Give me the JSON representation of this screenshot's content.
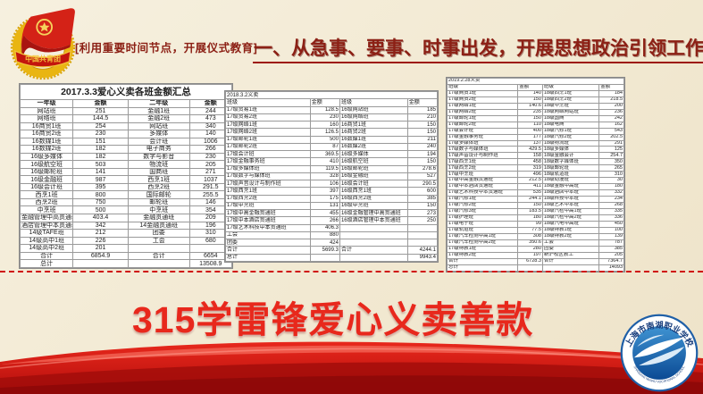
{
  "slide": {
    "badge_label": "[利用重要时间节点，开展仪式教育]",
    "title": "一、从急事、要事、时事出发，开展思想政治引领工作",
    "headline": "315学雷锋爱心义卖善款",
    "emblem": {
      "banner_text": "中国共青团"
    },
    "logo": {
      "name_cn": "上海市南湖职业学校",
      "name_en": "SHANGHAI NANHU VOCATIONAL SCHOOL"
    }
  },
  "colors": {
    "background": "#f4edda",
    "dark_red_text": "#8c2015",
    "headline_red": "#e8281c",
    "ribbon_red": "#c51512",
    "dashed_line_red": "#cf1010",
    "emblem_gold": "#e9b512",
    "logo_blue": "#1e5fa7"
  },
  "tables": [
    {
      "title": "2017.3.3爱心义卖各班金额汇总",
      "headers": [
        "一年级",
        "金额",
        "二年级",
        "金额"
      ],
      "rows": [
        [
          "网站班",
          "251",
          "金融1班",
          "244"
        ],
        [
          "网络班",
          "144.5",
          "金融2班",
          "473"
        ],
        [
          "16商贸1班",
          "254",
          "网站班",
          "340"
        ],
        [
          "16商贸2班",
          "230",
          "多媒体",
          "140"
        ],
        [
          "16数媒1班",
          "151",
          "会计班",
          "1006"
        ],
        [
          "16数媒2班",
          "182",
          "电子商务",
          "266"
        ],
        [
          "16级多媒体",
          "182",
          "数字与影音",
          "230"
        ],
        [
          "16级航空班",
          "503",
          "物流班",
          "205"
        ],
        [
          "16级邮轮班",
          "141",
          "国商班",
          "271"
        ],
        [
          "16级金融班",
          "987",
          "西烹1班",
          "1037"
        ],
        [
          "16级会计班",
          "395",
          "西烹2班",
          "291.5"
        ],
        [
          "西烹1班",
          "800",
          "国际邮轮",
          "255.5"
        ],
        [
          "西烹2班",
          "750",
          "邮轮班",
          "146"
        ],
        [
          "中烹班",
          "500",
          "中烹班",
          "354"
        ],
        [
          "金融管理中高贯通班",
          "403.4",
          "金融贯通班",
          "209"
        ],
        [
          "酒店管理中本贯通班",
          "342",
          "14金融贯通班",
          "196"
        ],
        [
          "14级TAFE班",
          "212",
          "团委",
          "310"
        ],
        [
          "14级高中1班",
          "226",
          "工会",
          "680"
        ],
        [
          "14级高中2班",
          "201",
          "",
          ""
        ],
        [
          "合计",
          "6854.9",
          "合计",
          "6654"
        ],
        [
          "总计",
          "",
          "",
          "13508.9"
        ]
      ]
    },
    {
      "title": "2018.3.2义卖",
      "headers": [
        "班级",
        "金额",
        "班级",
        "金额"
      ],
      "rows": [
        [
          "17级贸易1班",
          "128.5",
          "16级网站班",
          "185"
        ],
        [
          "17级贸易2班",
          "230",
          "16级网络班",
          "210"
        ],
        [
          "17级网络1班",
          "160",
          "16商贸1班",
          "150"
        ],
        [
          "17级网络2班",
          "126.5",
          "16商贸2班",
          "150"
        ],
        [
          "17级邮轮1班",
          "500",
          "16数媒1班",
          "211"
        ],
        [
          "17级邮轮2班",
          "87",
          "16数媒2班",
          "240"
        ],
        [
          "17级会计班",
          "369.5",
          "16级多媒体",
          "194"
        ],
        [
          "17级金融事务班",
          "410",
          "16级航空班",
          "150"
        ],
        [
          "17级多媒体班",
          "119.5",
          "16级邮轮班",
          "278.6"
        ],
        [
          "17级数字与媒体班",
          "328",
          "16级金融班",
          "527"
        ],
        [
          "17级声音设计与制作班",
          "106",
          "16级会计班",
          "290.5"
        ],
        [
          "17级西烹1班",
          "397",
          "16级西烹1班",
          "600"
        ],
        [
          "17级西烹2班",
          "175",
          "16级西烹2班",
          "385"
        ],
        [
          "17级中烹班",
          "131",
          "16级中烹班",
          "150"
        ],
        [
          "17级中高金融贯通班",
          "455",
          "16级金融管理中高贯通班",
          "273"
        ],
        [
          "17级中本酒店贯通班",
          "266",
          "16级酒店管理中本贯通班",
          "250"
        ],
        [
          "17级艺术科技中本贯通班",
          "406.3",
          "",
          ""
        ],
        [
          "工会",
          "880",
          "",
          ""
        ],
        [
          "团委",
          "424",
          "",
          ""
        ],
        [
          "合计",
          "5699.3",
          "合计",
          "4244.1"
        ],
        [
          "总计",
          "",
          "",
          "9943.4"
        ]
      ]
    },
    {
      "title": "2019.2.28义卖",
      "headers": [
        "班级",
        "金额",
        "班级",
        "金额"
      ],
      "rows": [
        [
          "17级商贸1班",
          "140",
          "18级西烹1班",
          "184"
        ],
        [
          "17级商贸2班",
          "150",
          "18级西烹2班",
          "218.5"
        ],
        [
          "17级网络1班",
          "140.6",
          "18级中烹班",
          "200"
        ],
        [
          "17级网络2班",
          "235",
          "18级网络网站班",
          "236"
        ],
        [
          "17级邮轮1班",
          "150",
          "18级国商",
          "242"
        ],
        [
          "17级邮轮2班",
          "110",
          "18级电商",
          "162"
        ],
        [
          "17级会计班",
          "400",
          "18级汽修1班",
          "543"
        ],
        [
          "17级金融事务班",
          "177",
          "18级汽修2班",
          "202.5"
        ],
        [
          "17级多媒体班",
          "137",
          "18级物流班",
          "291"
        ],
        [
          "17级数字与媒体班",
          "429.5",
          "18级多媒体",
          "125"
        ],
        [
          "17级声音设计与制作班",
          "158",
          "18级金融会计",
          "254.7"
        ],
        [
          "17级西烹1班",
          "458",
          "18级数字媒体班",
          "350"
        ],
        [
          "17级西烹2班",
          "319",
          "18级邮轮班",
          "265"
        ],
        [
          "17级中烹班",
          "496",
          "18级轨道班",
          "310"
        ],
        [
          "17级中高金融贯通班",
          "212.5",
          "18级动漫班",
          "30"
        ],
        [
          "17级中本酒店贯通班",
          "411",
          "18级金融中高班",
          "180"
        ],
        [
          "17级艺术科技中本贯通班",
          "535",
          "18级酒店中本班",
          "332"
        ],
        [
          "17级汽修1班",
          "244.1",
          "18级科技中本班",
          "234"
        ],
        [
          "17级汽修2班",
          "150",
          "18级艺术中本班",
          "268"
        ],
        [
          "17级汽修3班",
          "183.5",
          "18级汽检中高1班",
          "335"
        ],
        [
          "17级护理班",
          "180",
          "18级汽检中高2班",
          "336"
        ],
        [
          "17级电子班",
          "99",
          "18级汽电中高班",
          "450"
        ],
        [
          "17级轨道班",
          "77.5",
          "18级特教1班",
          "100"
        ],
        [
          "17级汽车检测中高1班",
          "308",
          "18级特教2班",
          "139"
        ],
        [
          "17级汽车检测中高2班",
          "350.6",
          "工会",
          "787"
        ],
        [
          "17级特教1班",
          "280",
          "团委",
          "385"
        ],
        [
          "17级特教2班",
          "197",
          "新沪校区教工",
          "205"
        ],
        [
          "合计",
          "6728.3",
          "合计",
          "7364.7"
        ],
        [
          "总计",
          "",
          "",
          "14093"
        ]
      ]
    }
  ]
}
